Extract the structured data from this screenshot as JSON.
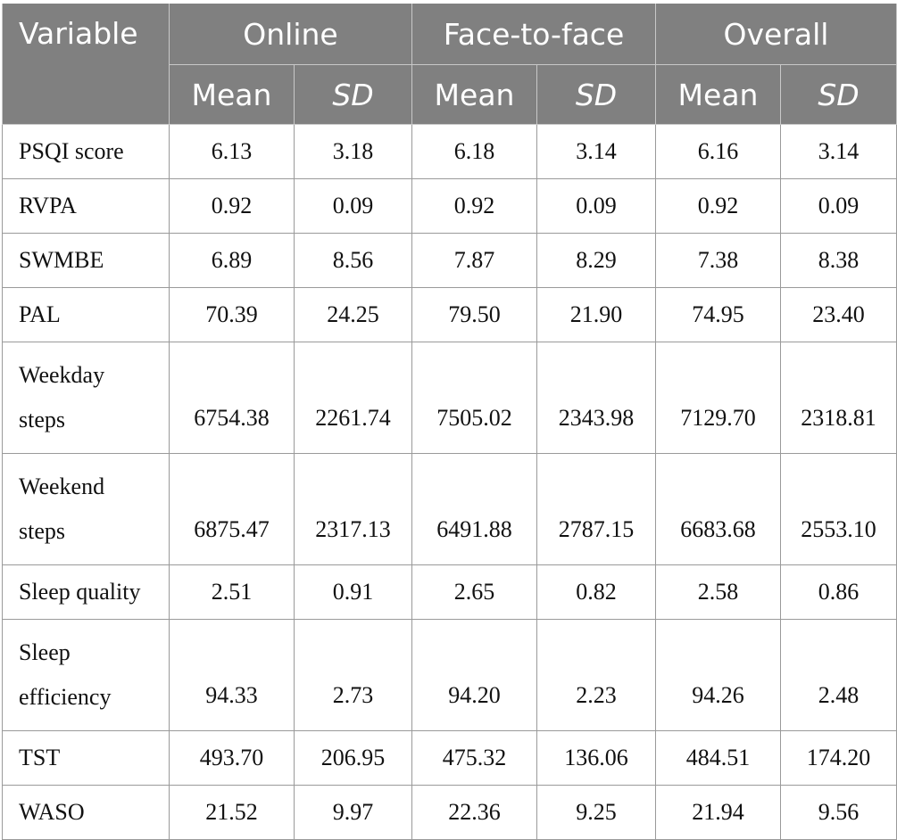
{
  "table": {
    "header": {
      "variable": "Variable",
      "groups": [
        "Online",
        "Face-to-face",
        "Overall"
      ],
      "mean": "Mean",
      "sd": "SD"
    },
    "rows": [
      {
        "label": "PSQI score",
        "values": [
          "6.13",
          "3.18",
          "6.18",
          "3.14",
          "6.16",
          "3.14"
        ]
      },
      {
        "label": "RVPA",
        "values": [
          "0.92",
          "0.09",
          "0.92",
          "0.09",
          "0.92",
          "0.09"
        ]
      },
      {
        "label": "SWMBE",
        "values": [
          "6.89",
          "8.56",
          "7.87",
          "8.29",
          "7.38",
          "8.38"
        ]
      },
      {
        "label": "PAL",
        "values": [
          "70.39",
          "24.25",
          "79.50",
          "21.90",
          "74.95",
          "23.40"
        ]
      },
      {
        "label": "Weekday steps",
        "values": [
          "6754.38",
          "2261.74",
          "7505.02",
          "2343.98",
          "7129.70",
          "2318.81"
        ]
      },
      {
        "label": "Weekend steps",
        "values": [
          "6875.47",
          "2317.13",
          "6491.88",
          "2787.15",
          "6683.68",
          "2553.10"
        ]
      },
      {
        "label": "Sleep quality",
        "values": [
          "2.51",
          "0.91",
          "2.65",
          "0.82",
          "2.58",
          "0.86"
        ]
      },
      {
        "label": "Sleep efficiency",
        "values": [
          "94.33",
          "2.73",
          "94.20",
          "2.23",
          "94.26",
          "2.48"
        ]
      },
      {
        "label": "TST",
        "values": [
          "493.70",
          "206.95",
          "475.32",
          "136.06",
          "484.51",
          "174.20"
        ]
      },
      {
        "label": "WASO",
        "values": [
          "21.52",
          "9.97",
          "22.36",
          "9.25",
          "21.94",
          "9.56"
        ]
      }
    ]
  }
}
